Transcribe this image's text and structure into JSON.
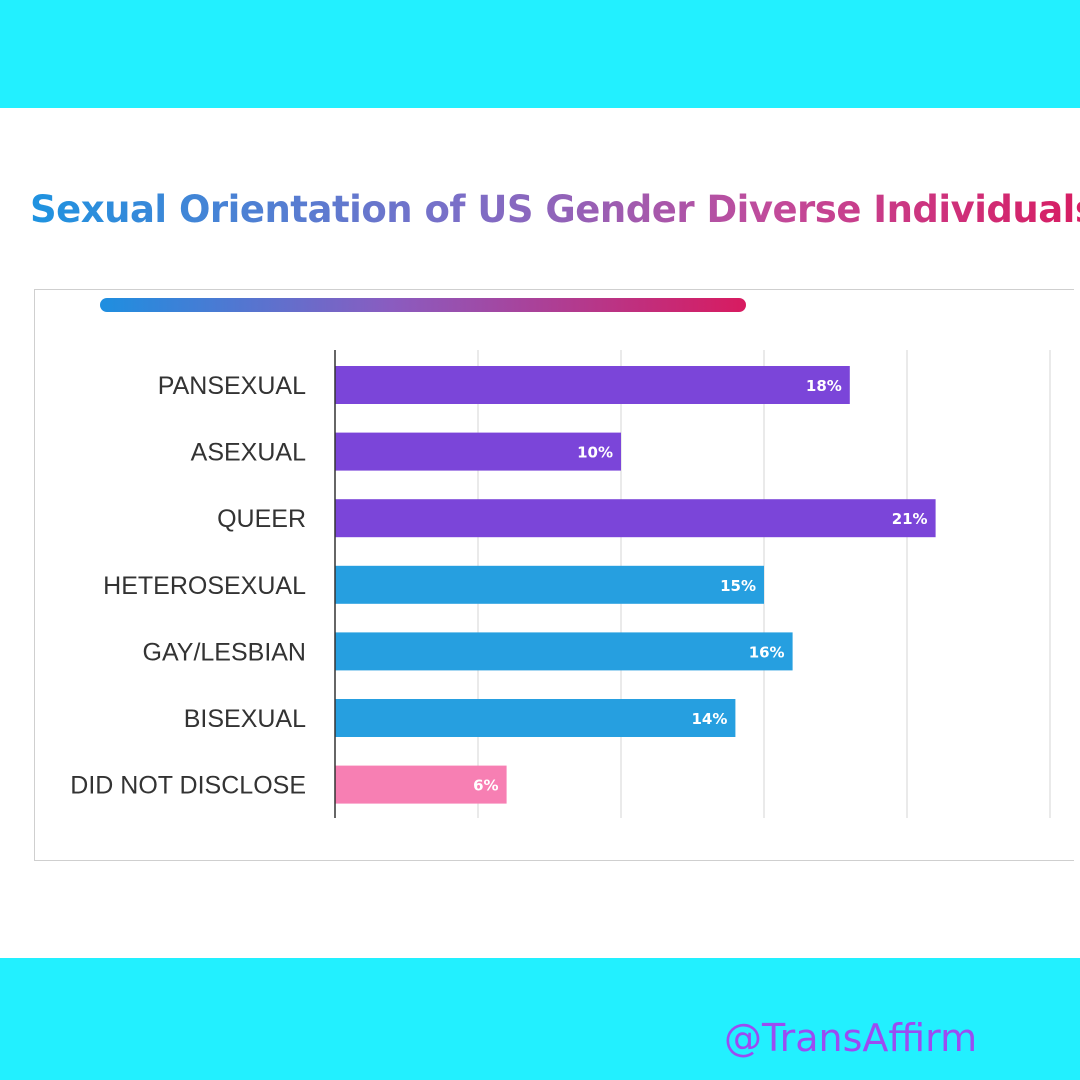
{
  "title": "Sexual Orientation of US Gender Diverse Individuals",
  "handle": "@TransAffirm",
  "colors": {
    "band": "#22f0ff",
    "purple": "#7b45d9",
    "blue": "#269fe0",
    "pink": "#f77fb3"
  },
  "chart_data": {
    "type": "bar",
    "orientation": "horizontal",
    "title": "Sexual Orientation of US Gender Diverse Individuals",
    "categories": [
      "PANSEXUAL",
      "ASEXUAL",
      "QUEER",
      "HETEROSEXUAL",
      "GAY/LESBIAN",
      "BISEXUAL",
      "DID NOT DISCLOSE"
    ],
    "values": [
      18,
      10,
      21,
      15,
      16,
      14,
      6
    ],
    "data_labels": [
      "18%",
      "10%",
      "21%",
      "15%",
      "16%",
      "14%",
      "6%"
    ],
    "bar_colors": [
      "#7b45d9",
      "#7b45d9",
      "#7b45d9",
      "#269fe0",
      "#269fe0",
      "#269fe0",
      "#f77fb3"
    ],
    "xlim": [
      0,
      25
    ],
    "x_gridlines": [
      5,
      10,
      15,
      20,
      25
    ],
    "grid": true,
    "unit": "%"
  }
}
